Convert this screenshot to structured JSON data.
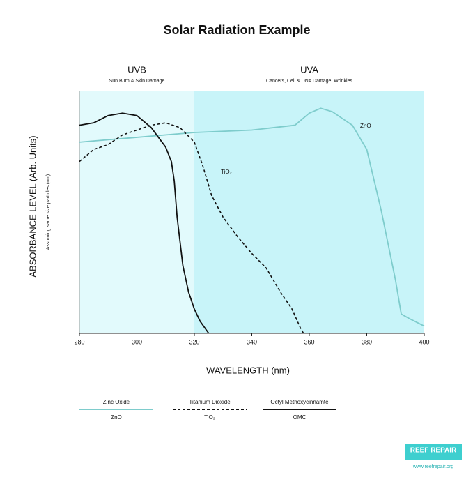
{
  "chart_data": {
    "type": "line",
    "title": "Solar Radiation Example",
    "x_label": "WAVELENGTH (nm)",
    "y_label": "ABSORBANCE LEVEL (Arb. Units)",
    "y_sublabel": "Assuming same size particles (nm)",
    "xlim": [
      280,
      400
    ],
    "xticks": [
      280,
      300,
      320,
      340,
      360,
      380,
      400
    ],
    "ylim": [
      0,
      100
    ],
    "regions": [
      {
        "name": "UVB",
        "subtitle": "Sun Burn & Skin Damage",
        "range": [
          280,
          320
        ],
        "color": "#e2fafc"
      },
      {
        "name": "UVA",
        "subtitle": "Cancers, Cell & DNA Damage, Wrinkles",
        "range": [
          320,
          400
        ],
        "color": "#c8f4f9"
      }
    ],
    "series": [
      {
        "name": "Zinc Oxide",
        "label": "ZnO",
        "color": "#7ecccc",
        "dashed": false,
        "x": [
          280,
          300,
          320,
          340,
          355,
          360,
          364,
          368,
          375,
          380,
          385,
          390,
          392,
          395,
          400
        ],
        "y": [
          79,
          81,
          83,
          84,
          86,
          91,
          93,
          91.6,
          86,
          76,
          51,
          22,
          8,
          6,
          3
        ]
      },
      {
        "name": "Titanium Dioxide",
        "label": "TiO₂",
        "color": "#111111",
        "dashed": true,
        "x": [
          280,
          285,
          290,
          295,
          300,
          305,
          310,
          315,
          320,
          323,
          326,
          330,
          335,
          340,
          345,
          350,
          354,
          357,
          358
        ],
        "y": [
          71,
          76,
          78,
          82,
          84,
          86,
          87,
          85,
          79,
          69,
          57,
          48,
          40,
          33,
          27,
          17,
          10,
          2,
          0
        ]
      },
      {
        "name": "Octyl Methoxycinnamte",
        "label": "OMC",
        "color": "#111111",
        "dashed": false,
        "x": [
          280,
          285,
          290,
          295,
          300,
          305,
          310,
          312,
          313,
          314,
          316,
          318,
          320,
          322,
          325
        ],
        "y": [
          86,
          87,
          90,
          91,
          90,
          85,
          77,
          71,
          63,
          48,
          28,
          17,
          10,
          5,
          0
        ]
      }
    ],
    "footer": {
      "brand": "REEF REPAIR",
      "url": "www.reefrepair.org"
    }
  }
}
